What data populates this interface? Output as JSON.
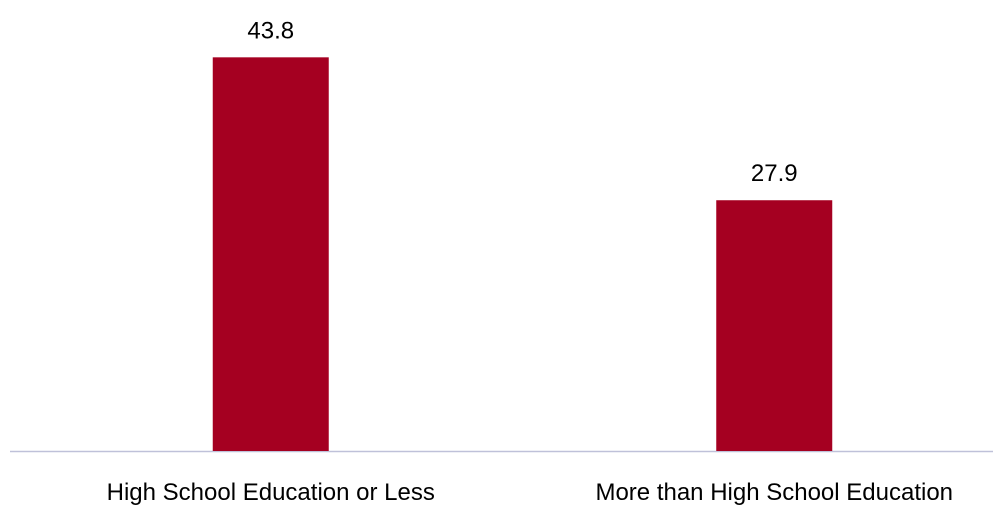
{
  "chart_data": {
    "type": "bar",
    "title": "",
    "xlabel": "",
    "ylabel": "",
    "categories": [
      "High School Education or Less",
      "More than High School Education"
    ],
    "values": [
      43.8,
      27.9
    ],
    "value_labels": [
      "43.8",
      "27.9"
    ],
    "ylim": [
      0,
      50
    ],
    "grid": false,
    "legend": "none",
    "bar_color": "#a50021",
    "axis_color": "#bfc1d9"
  }
}
